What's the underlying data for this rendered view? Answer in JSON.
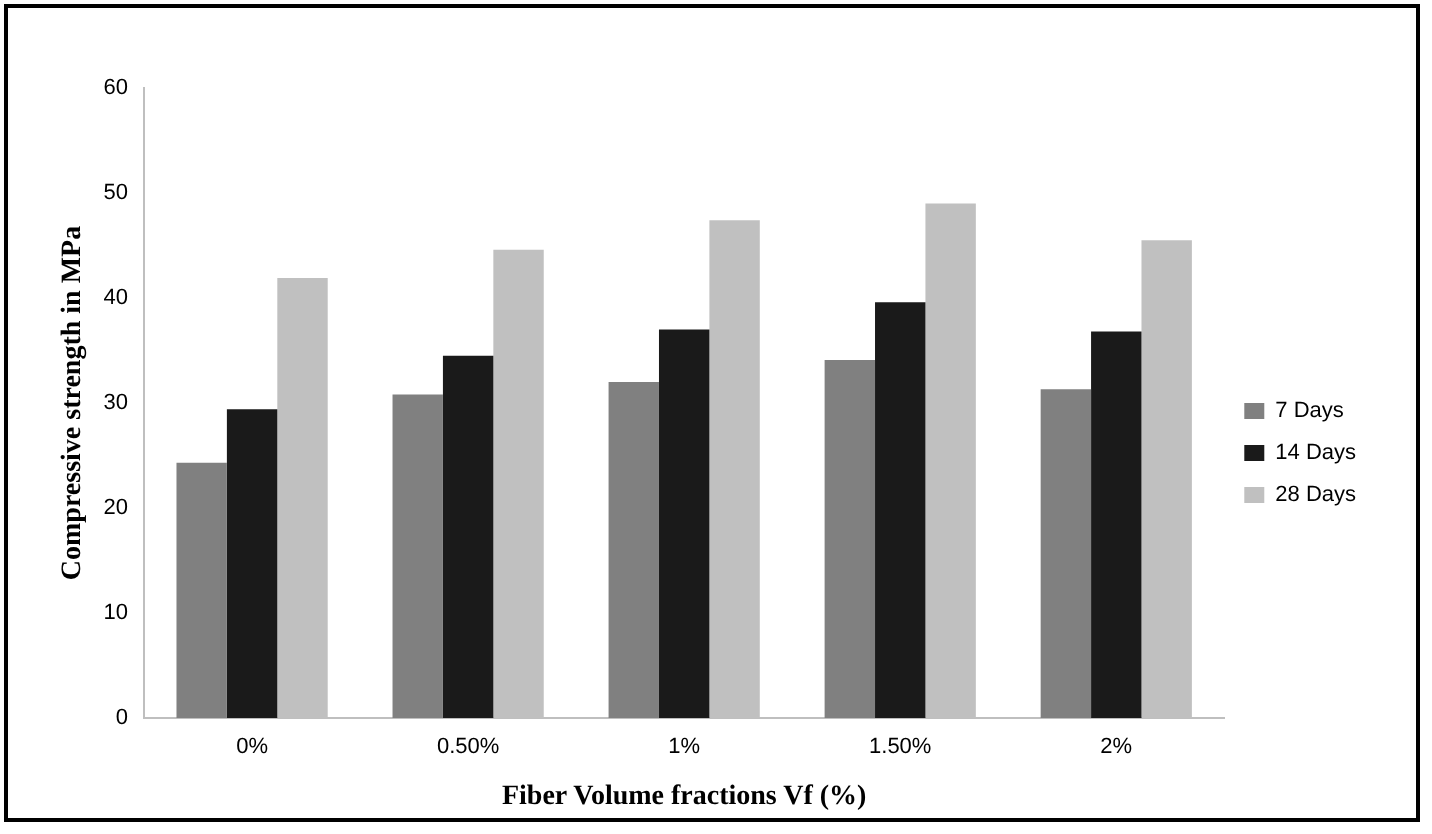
{
  "chart_data": {
    "type": "bar",
    "xlabel": "Fiber Volume fractions Vf (%)",
    "ylabel": "Compressive strength in MPa",
    "categories": [
      "0%",
      "0.50%",
      "1%",
      "1.50%",
      "2%"
    ],
    "series": [
      {
        "name": "7 Days",
        "color": "#808080",
        "values": [
          24.3,
          30.8,
          32.0,
          34.1,
          31.3
        ]
      },
      {
        "name": "14 Days",
        "color": "#1a1a1a",
        "values": [
          29.4,
          34.5,
          37.0,
          39.6,
          36.8
        ]
      },
      {
        "name": "28 Days",
        "color": "#c0c0c0",
        "values": [
          41.9,
          44.6,
          47.4,
          49.0,
          45.5
        ]
      }
    ],
    "ylim": [
      0,
      60
    ],
    "yticks": [
      0,
      10,
      20,
      30,
      40,
      50,
      60
    ],
    "grid": false,
    "legend": "right"
  }
}
